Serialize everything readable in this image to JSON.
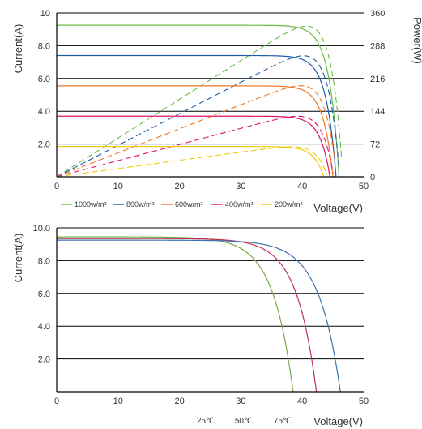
{
  "chart_data": [
    {
      "type": "line",
      "title": "",
      "ylabel": "Current(A)",
      "y2label": "Power(W)",
      "xlabel": "Voltage(V)",
      "xlim": [
        0,
        50
      ],
      "ylim": [
        0,
        10
      ],
      "y2lim": [
        0,
        360
      ],
      "x_ticks": [
        "0",
        "10",
        "20",
        "30",
        "40",
        "50"
      ],
      "y_ticks": [
        "",
        "2.0",
        "4.0",
        "6.0",
        "8.0",
        "10"
      ],
      "y2_ticks": [
        "0",
        "72",
        "144",
        "216",
        "288",
        "360"
      ],
      "grid_y": true,
      "legend_position": "bottom",
      "series": [
        {
          "name": "1000w/m²",
          "color": "#66bb44",
          "isc": 9.25,
          "voc": 46.0,
          "power_max": 331,
          "vmp": 38.0
        },
        {
          "name": "800w/m²",
          "color": "#1e5ba8",
          "isc": 7.4,
          "voc": 45.5,
          "power_max": 266,
          "vmp": 37.8
        },
        {
          "name": "600w/m²",
          "color": "#ee7722",
          "isc": 5.55,
          "voc": 45.0,
          "power_max": 200,
          "vmp": 37.4
        },
        {
          "name": "400w/m²",
          "color": "#dd1166",
          "isc": 3.7,
          "voc": 44.5,
          "power_max": 133,
          "vmp": 37.0
        },
        {
          "name": "200w/m²",
          "color": "#eecc00",
          "isc": 1.85,
          "voc": 43.5,
          "power_max": 66,
          "vmp": 36.5
        }
      ]
    },
    {
      "type": "line",
      "title": "",
      "ylabel": "Current(A)",
      "xlabel": "Voltage(V)",
      "xlim": [
        0,
        50
      ],
      "ylim": [
        0,
        10
      ],
      "x_ticks": [
        "0",
        "10",
        "20",
        "30",
        "40",
        "50"
      ],
      "y_ticks": [
        "",
        "2.0",
        "4.0",
        "6.0",
        "8.0",
        "10.0"
      ],
      "grid_y": true,
      "legend_position": "bottom-right",
      "series": [
        {
          "name": "25℃",
          "color": "#7aa84a",
          "isc": 9.45,
          "voc": 38.5,
          "knee": 28.0
        },
        {
          "name": "50℃",
          "color": "#c0304a",
          "isc": 9.35,
          "voc": 42.3,
          "knee": 32.0
        },
        {
          "name": "75℃",
          "color": "#3a70b0",
          "isc": 9.25,
          "voc": 46.2,
          "knee": 35.0
        }
      ]
    }
  ]
}
